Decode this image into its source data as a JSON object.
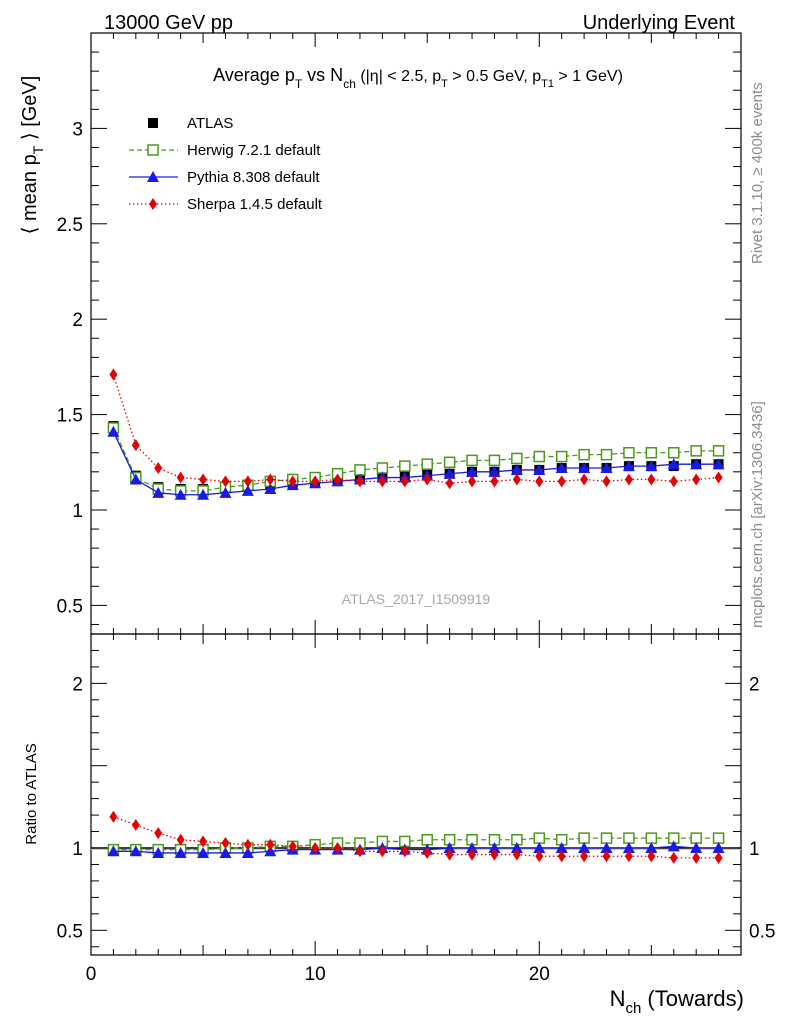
{
  "header": {
    "left": "13000 GeV pp",
    "right": "Underlying Event"
  },
  "side_labels": {
    "rivet": "Rivet 3.1.10, ≥ 400k events",
    "mcplots": "mcplots.cern.ch [arXiv:1306.3436]"
  },
  "colors": {
    "atlas": "#000000",
    "herwig": "#4a9a1a",
    "pythia": "#1a1ae6",
    "sherpa": "#e60000"
  },
  "chart_data": [
    {
      "type": "line",
      "title": "Average p_T vs N_ch (|η| < 2.5, p_T > 0.5 GeV, p_T1 > 1 GeV)",
      "ylabel": "⟨ mean p_T ⟩ [GeV]",
      "xlabel": "",
      "xlim": [
        0,
        29
      ],
      "ylim": [
        0.35,
        3.5
      ],
      "yticks": [
        "0.5",
        "1",
        "1.5",
        "2",
        "2.5",
        "3"
      ],
      "reference": "ATLAS_2017_I1509919",
      "legend_position": "top-left",
      "x": [
        1,
        2,
        3,
        4,
        5,
        6,
        7,
        8,
        9,
        10,
        11,
        12,
        13,
        14,
        15,
        16,
        17,
        18,
        19,
        20,
        21,
        22,
        23,
        24,
        25,
        26,
        27,
        28
      ],
      "series": [
        {
          "name": "ATLAS",
          "style": "data",
          "color": "#000000",
          "values": [
            1.44,
            1.18,
            1.12,
            1.11,
            1.11,
            1.12,
            1.13,
            1.13,
            1.14,
            1.15,
            1.16,
            1.17,
            1.17,
            1.18,
            1.19,
            1.19,
            1.2,
            1.2,
            1.21,
            1.21,
            1.22,
            1.22,
            1.22,
            1.23,
            1.23,
            1.23,
            1.24,
            1.24
          ]
        },
        {
          "name": "Herwig 7.2.1 default",
          "style": "dashed-open-square",
          "color": "#4a9a1a",
          "values": [
            1.43,
            1.17,
            1.11,
            1.1,
            1.1,
            1.12,
            1.13,
            1.15,
            1.16,
            1.17,
            1.19,
            1.21,
            1.22,
            1.23,
            1.24,
            1.25,
            1.26,
            1.26,
            1.27,
            1.28,
            1.28,
            1.29,
            1.29,
            1.3,
            1.3,
            1.3,
            1.31,
            1.31
          ]
        },
        {
          "name": "Pythia 8.308 default",
          "style": "solid-triangle",
          "color": "#1a1ae6",
          "values": [
            1.41,
            1.16,
            1.09,
            1.08,
            1.08,
            1.09,
            1.1,
            1.11,
            1.13,
            1.14,
            1.15,
            1.16,
            1.17,
            1.17,
            1.18,
            1.19,
            1.2,
            1.2,
            1.21,
            1.21,
            1.22,
            1.22,
            1.22,
            1.23,
            1.23,
            1.24,
            1.24,
            1.24
          ]
        },
        {
          "name": "Sherpa 1.4.5 default",
          "style": "dotted-diamond",
          "color": "#e60000",
          "values": [
            1.71,
            1.34,
            1.22,
            1.17,
            1.16,
            1.15,
            1.15,
            1.16,
            1.15,
            1.15,
            1.16,
            1.15,
            1.15,
            1.15,
            1.16,
            1.14,
            1.15,
            1.15,
            1.16,
            1.15,
            1.15,
            1.16,
            1.15,
            1.16,
            1.16,
            1.15,
            1.16,
            1.17
          ]
        }
      ]
    },
    {
      "type": "line",
      "title": "",
      "ylabel": "Ratio to ATLAS",
      "xlabel": "N_ch (Towards)",
      "xlim": [
        0,
        29
      ],
      "ylim": [
        0.35,
        2.3
      ],
      "yticks": [
        "0.5",
        "1",
        "2"
      ],
      "xticks": [
        "0",
        "10",
        "20"
      ],
      "x": [
        1,
        2,
        3,
        4,
        5,
        6,
        7,
        8,
        9,
        10,
        11,
        12,
        13,
        14,
        15,
        16,
        17,
        18,
        19,
        20,
        21,
        22,
        23,
        24,
        25,
        26,
        27,
        28
      ],
      "series": [
        {
          "name": "Herwig 7.2.1 default",
          "color": "#4a9a1a",
          "values": [
            0.99,
            0.99,
            0.99,
            0.99,
            0.99,
            1.0,
            1.0,
            1.01,
            1.01,
            1.02,
            1.03,
            1.03,
            1.04,
            1.04,
            1.05,
            1.05,
            1.05,
            1.05,
            1.05,
            1.06,
            1.05,
            1.06,
            1.06,
            1.06,
            1.06,
            1.06,
            1.06,
            1.06
          ]
        },
        {
          "name": "Pythia 8.308 default",
          "color": "#1a1ae6",
          "values": [
            0.98,
            0.98,
            0.97,
            0.97,
            0.97,
            0.97,
            0.97,
            0.98,
            0.99,
            0.99,
            0.99,
            0.99,
            1.0,
            0.99,
            0.99,
            1.0,
            1.0,
            1.0,
            1.0,
            1.0,
            1.0,
            1.0,
            1.0,
            1.0,
            1.0,
            1.01,
            1.0,
            1.0
          ]
        },
        {
          "name": "Sherpa 1.4.5 default",
          "color": "#e60000",
          "values": [
            1.19,
            1.14,
            1.09,
            1.05,
            1.04,
            1.03,
            1.02,
            1.02,
            1.01,
            1.0,
            1.0,
            0.98,
            0.98,
            0.98,
            0.97,
            0.96,
            0.96,
            0.96,
            0.96,
            0.95,
            0.95,
            0.95,
            0.95,
            0.95,
            0.95,
            0.94,
            0.94,
            0.94
          ]
        }
      ]
    }
  ]
}
